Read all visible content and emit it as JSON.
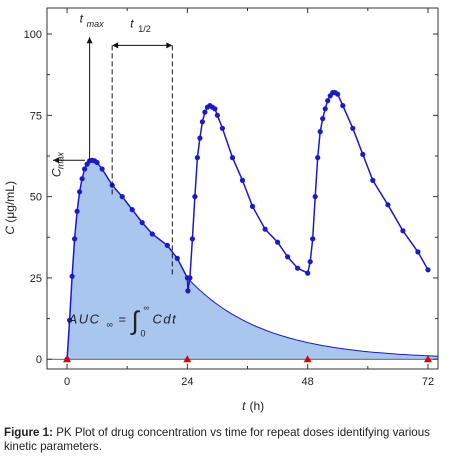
{
  "chart_data": {
    "type": "line",
    "xlabel": "t (h)",
    "ylabel": "C (μg/mL)",
    "xlim": [
      -4,
      74
    ],
    "ylim": [
      -3,
      108
    ],
    "x_ticks": [
      0,
      24,
      48,
      72
    ],
    "y_ticks": [
      0,
      25,
      50,
      75,
      100
    ],
    "dose_times": [
      0,
      24,
      48,
      72
    ],
    "colors": {
      "line": "#1a1acb",
      "fill": "#a8c6ee",
      "dose_marker": "#e00000"
    },
    "series": [
      {
        "values": [
          [
            0,
            0
          ],
          [
            0.5,
            12
          ],
          [
            1,
            25.5
          ],
          [
            1.5,
            37
          ],
          [
            2,
            45.5
          ],
          [
            2.5,
            51.5
          ],
          [
            3,
            55.5
          ],
          [
            3.5,
            58.5
          ],
          [
            4,
            60
          ],
          [
            4.5,
            61
          ],
          [
            5,
            61.2
          ],
          [
            5.5,
            61
          ],
          [
            6,
            60.5
          ],
          [
            7,
            58.5
          ],
          [
            9,
            53.5
          ],
          [
            11,
            50
          ],
          [
            13,
            46
          ],
          [
            15,
            42
          ],
          [
            17,
            38.5
          ],
          [
            20,
            35
          ],
          [
            22,
            31
          ],
          [
            24,
            25
          ],
          [
            24.1,
            21
          ],
          [
            24.5,
            25
          ],
          [
            25,
            37
          ],
          [
            25.5,
            50
          ],
          [
            26,
            62
          ],
          [
            26.5,
            68
          ],
          [
            27,
            73
          ],
          [
            27.5,
            76
          ],
          [
            28,
            77.5
          ],
          [
            28.5,
            78
          ],
          [
            29,
            77.5
          ],
          [
            29.5,
            77
          ],
          [
            30,
            75
          ],
          [
            31,
            71
          ],
          [
            33,
            62
          ],
          [
            35,
            55
          ],
          [
            37,
            47
          ],
          [
            39.5,
            40
          ],
          [
            42,
            36
          ],
          [
            44,
            31.5
          ],
          [
            46,
            28
          ],
          [
            48,
            26.5
          ],
          [
            48.5,
            30
          ],
          [
            49,
            37
          ],
          [
            49.5,
            50
          ],
          [
            50,
            62
          ],
          [
            50.5,
            70
          ],
          [
            51,
            74
          ],
          [
            51.5,
            77
          ],
          [
            52,
            79.5
          ],
          [
            52.5,
            81
          ],
          [
            53,
            82
          ],
          [
            53.5,
            82
          ],
          [
            54,
            81.5
          ],
          [
            55,
            78
          ],
          [
            57,
            71
          ],
          [
            59,
            63
          ],
          [
            61,
            55
          ],
          [
            64,
            47.5
          ],
          [
            67,
            39.5
          ],
          [
            70,
            33
          ],
          [
            72,
            27.5
          ]
        ]
      }
    ],
    "annotations": {
      "tmax": "t",
      "tmax_sub": "max",
      "thalf": "t",
      "thalf_sub": "1/2",
      "cmax": "C",
      "cmax_sub": "max",
      "auc": "AUC",
      "auc_sub": "∞",
      "auc_eq": "=",
      "integral": "∫",
      "int_upper": "∞",
      "int_lower": "0",
      "integrand": "Cdt"
    }
  },
  "caption": {
    "label": "Figure 1:",
    "text": " PK Plot of drug concentration vs time for repeat doses identifying various kinetic parameters."
  }
}
